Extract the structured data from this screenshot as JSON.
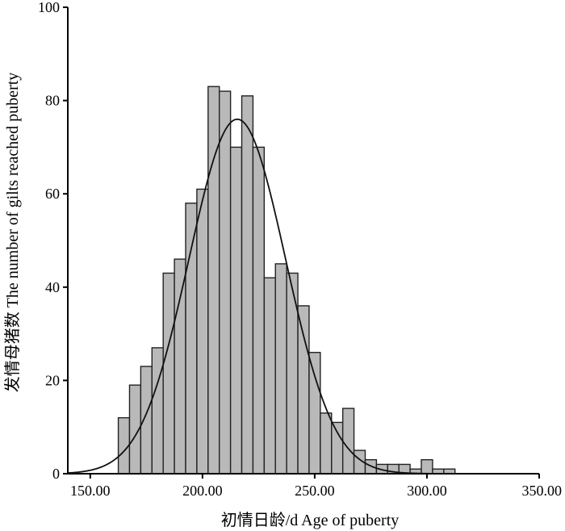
{
  "chart_data": {
    "type": "bar",
    "subtype": "histogram-with-normal-curve",
    "xlabel": "初情日龄/d  Age of puberty",
    "ylabel": "发情母猪数  The number of gilts reached puberty",
    "xlim": [
      140,
      350
    ],
    "ylim": [
      0,
      100
    ],
    "x_ticks": [
      "150.00",
      "200.00",
      "250.00",
      "300.00",
      "350.00"
    ],
    "y_ticks": [
      "0",
      "20",
      "40",
      "60",
      "80",
      "100"
    ],
    "bin_width": 5,
    "bins": [
      {
        "start": 162.5,
        "count": 12
      },
      {
        "start": 167.5,
        "count": 19
      },
      {
        "start": 172.5,
        "count": 23
      },
      {
        "start": 177.5,
        "count": 27
      },
      {
        "start": 182.5,
        "count": 43
      },
      {
        "start": 187.5,
        "count": 46
      },
      {
        "start": 192.5,
        "count": 58
      },
      {
        "start": 197.5,
        "count": 61
      },
      {
        "start": 202.5,
        "count": 83
      },
      {
        "start": 207.5,
        "count": 82
      },
      {
        "start": 212.5,
        "count": 70
      },
      {
        "start": 217.5,
        "count": 81
      },
      {
        "start": 222.5,
        "count": 70
      },
      {
        "start": 227.5,
        "count": 42
      },
      {
        "start": 232.5,
        "count": 45
      },
      {
        "start": 237.5,
        "count": 43
      },
      {
        "start": 242.5,
        "count": 36
      },
      {
        "start": 247.5,
        "count": 26
      },
      {
        "start": 252.5,
        "count": 13
      },
      {
        "start": 257.5,
        "count": 11
      },
      {
        "start": 262.5,
        "count": 14
      },
      {
        "start": 267.5,
        "count": 5
      },
      {
        "start": 272.5,
        "count": 3
      },
      {
        "start": 277.5,
        "count": 2
      },
      {
        "start": 282.5,
        "count": 2
      },
      {
        "start": 287.5,
        "count": 2
      },
      {
        "start": 292.5,
        "count": 1
      },
      {
        "start": 297.5,
        "count": 3
      },
      {
        "start": 302.5,
        "count": 1
      },
      {
        "start": 307.5,
        "count": 1
      }
    ],
    "normal_curve": {
      "mean": 215.5,
      "sd": 21.5,
      "peak": 76
    },
    "colors": {
      "bar_fill": "#b9b9b9",
      "bar_stroke": "#222222",
      "curve": "#111111",
      "axis": "#000000"
    },
    "grid": false,
    "legend": "none"
  }
}
